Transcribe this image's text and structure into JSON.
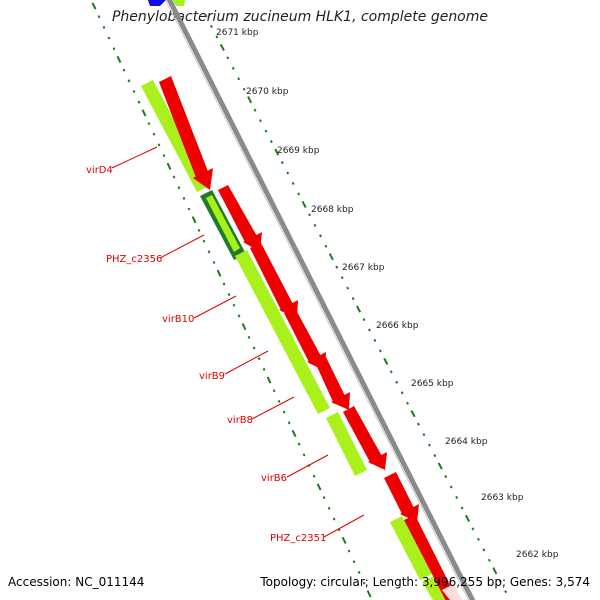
{
  "title": "Phenylobacterium zucineum HLK1, complete genome",
  "footer": {
    "accession": "Accession: NC_011144",
    "stats": "Topology: circular; Length: 3,996,255 bp; Genes: 3,574"
  },
  "colors": {
    "backbone": "#8a8a8a",
    "tick": "#1e7a1e",
    "forward_gene": "#a9f01c",
    "forward_gene_dark": "#1f7a2a",
    "reverse_gene": "#ee0000",
    "top_gene": "#1010e0",
    "gene_label": "#dd0000",
    "kbp_label": "#222222"
  },
  "scale_labels": [
    "2671 kbp",
    "2670 kbp",
    "2669 kbp",
    "2668 kbp",
    "2667 kbp",
    "2666 kbp",
    "2665 kbp",
    "2664 kbp",
    "2663 kbp",
    "2662 kbp"
  ],
  "gene_labels": [
    "virD4",
    "PHZ_c2356",
    "virB10",
    "virB9",
    "virB8",
    "virB6",
    "PHZ_c2351"
  ]
}
